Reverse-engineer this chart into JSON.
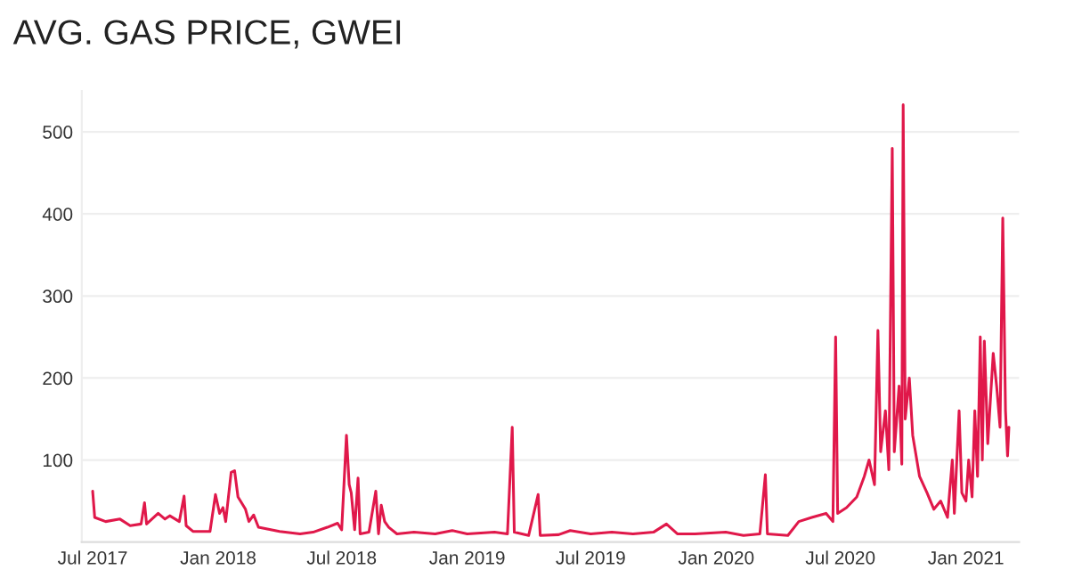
{
  "chart_data": {
    "type": "line",
    "title": "AVG. GAS PRICE, GWEI",
    "x": [
      "2017-07-01",
      "2017-07-04",
      "2017-07-20",
      "2017-08-10",
      "2017-08-25",
      "2017-09-10",
      "2017-09-15",
      "2017-09-18",
      "2017-10-05",
      "2017-10-15",
      "2017-10-22",
      "2017-11-05",
      "2017-11-12",
      "2017-11-15",
      "2017-11-25",
      "2017-12-20",
      "2017-12-28",
      "2018-01-03",
      "2018-01-08",
      "2018-01-12",
      "2018-01-20",
      "2018-01-25",
      "2018-01-30",
      "2018-02-10",
      "2018-02-15",
      "2018-02-22",
      "2018-03-01",
      "2018-04-01",
      "2018-05-01",
      "2018-05-20",
      "2018-06-10",
      "2018-06-25",
      "2018-07-01",
      "2018-07-08",
      "2018-07-12",
      "2018-07-15",
      "2018-07-20",
      "2018-07-25",
      "2018-07-28",
      "2018-08-10",
      "2018-08-20",
      "2018-08-24",
      "2018-08-28",
      "2018-09-02",
      "2018-09-08",
      "2018-09-20",
      "2018-10-15",
      "2018-11-15",
      "2018-12-10",
      "2019-01-01",
      "2019-02-10",
      "2019-03-01",
      "2019-03-08",
      "2019-03-11",
      "2019-04-01",
      "2019-04-15",
      "2019-04-18",
      "2019-05-15",
      "2019-06-01",
      "2019-07-01",
      "2019-08-01",
      "2019-09-01",
      "2019-10-01",
      "2019-10-20",
      "2019-11-05",
      "2019-12-01",
      "2020-01-15",
      "2020-02-10",
      "2020-03-05",
      "2020-03-13",
      "2020-03-16",
      "2020-04-15",
      "2020-05-01",
      "2020-05-20",
      "2020-06-10",
      "2020-06-20",
      "2020-06-24",
      "2020-06-27",
      "2020-07-10",
      "2020-07-25",
      "2020-08-05",
      "2020-08-12",
      "2020-08-20",
      "2020-08-25",
      "2020-08-29",
      "2020-09-05",
      "2020-09-10",
      "2020-09-15",
      "2020-09-18",
      "2020-09-25",
      "2020-09-29",
      "2020-10-01",
      "2020-10-04",
      "2020-10-10",
      "2020-10-15",
      "2020-10-25",
      "2020-11-05",
      "2020-11-15",
      "2020-11-25",
      "2020-12-05",
      "2020-12-12",
      "2020-12-15",
      "2020-12-22",
      "2020-12-26",
      "2021-01-01",
      "2021-01-05",
      "2021-01-10",
      "2021-01-14",
      "2021-01-18",
      "2021-01-22",
      "2021-01-25",
      "2021-01-28",
      "2021-02-02",
      "2021-02-06",
      "2021-02-10",
      "2021-02-15",
      "2021-02-20",
      "2021-02-24",
      "2021-02-28",
      "2021-03-03",
      "2021-03-05"
    ],
    "series": [
      {
        "color": "#e0184a",
        "values": [
          62,
          30,
          25,
          28,
          20,
          22,
          48,
          22,
          35,
          28,
          32,
          25,
          56,
          20,
          13,
          13,
          58,
          35,
          42,
          25,
          85,
          87,
          55,
          40,
          25,
          33,
          18,
          13,
          10,
          12,
          18,
          23,
          15,
          130,
          70,
          60,
          15,
          78,
          10,
          12,
          62,
          10,
          45,
          25,
          18,
          10,
          12,
          10,
          14,
          10,
          12,
          10,
          140,
          12,
          8,
          58,
          8,
          9,
          14,
          10,
          12,
          10,
          12,
          22,
          10,
          10,
          12,
          8,
          10,
          82,
          10,
          8,
          25,
          30,
          35,
          25,
          250,
          35,
          42,
          55,
          80,
          100,
          70,
          258,
          110,
          160,
          88,
          480,
          110,
          190,
          95,
          533,
          150,
          200,
          130,
          80,
          60,
          40,
          50,
          30,
          100,
          35,
          160,
          60,
          50,
          100,
          55,
          160,
          80,
          250,
          100,
          245,
          120,
          175,
          230,
          190,
          140,
          395,
          160,
          105,
          140
        ]
      }
    ],
    "xlim": [
      "2017-06-15",
      "2021-03-20"
    ],
    "xticks": [
      {
        "value": "2017-07-01",
        "label": "Jul 2017"
      },
      {
        "value": "2018-01-01",
        "label": "Jan 2018"
      },
      {
        "value": "2018-07-01",
        "label": "Jul 2018"
      },
      {
        "value": "2019-01-01",
        "label": "Jan 2019"
      },
      {
        "value": "2019-07-01",
        "label": "Jul 2019"
      },
      {
        "value": "2020-01-01",
        "label": "Jan 2020"
      },
      {
        "value": "2020-07-01",
        "label": "Jul 2020"
      },
      {
        "value": "2021-01-01",
        "label": "Jan 2021"
      }
    ],
    "ylim": [
      0,
      550
    ],
    "yticks": [
      100,
      200,
      300,
      400,
      500
    ],
    "grid": "y",
    "marker": "none",
    "line_style": "solid"
  }
}
